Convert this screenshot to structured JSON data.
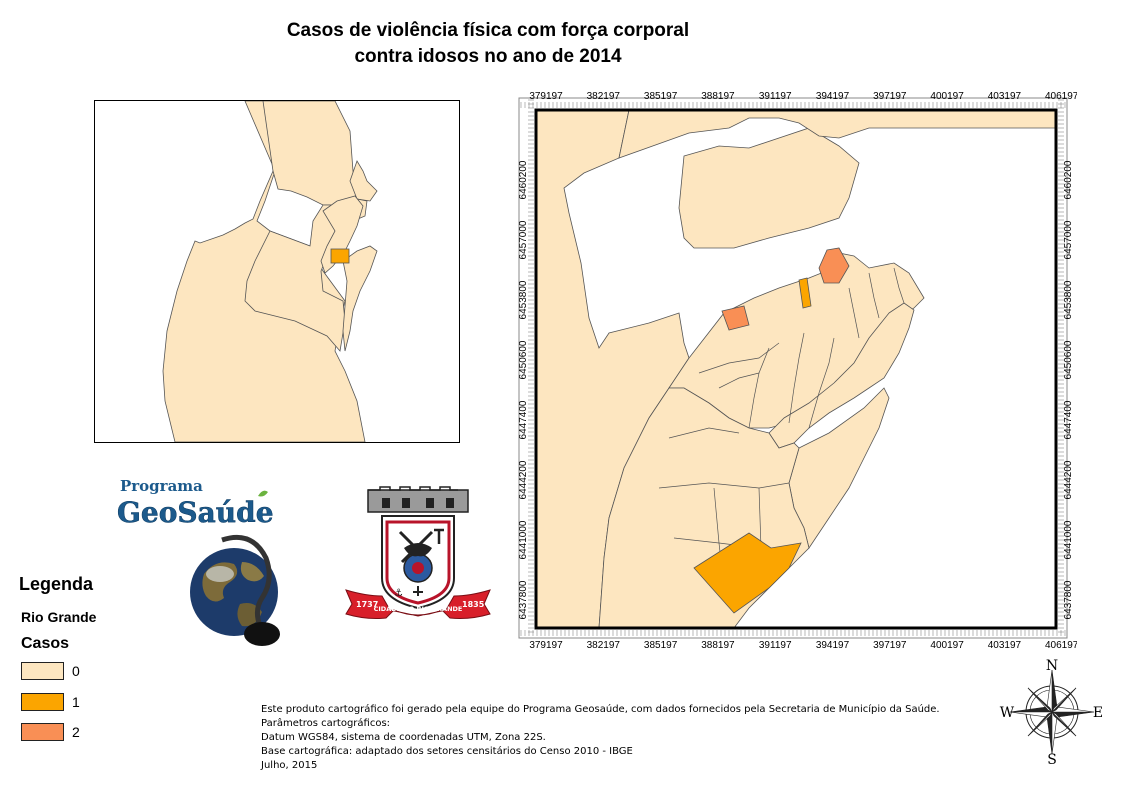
{
  "title": {
    "line1": "Casos de violência física com força corporal",
    "line2": "contra idosos no ano de 2014"
  },
  "map_frame": {
    "x_ticks": [
      "379197",
      "382197",
      "385197",
      "388197",
      "391197",
      "394197",
      "397197",
      "400197",
      "403197",
      "406197"
    ],
    "y_ticks": [
      "6460200",
      "6457000",
      "6453800",
      "6450600",
      "6447400",
      "6444200",
      "6441000",
      "6437800"
    ]
  },
  "legend": {
    "title": "Legenda",
    "layer": "Rio Grande",
    "field": "Casos",
    "classes": [
      {
        "label": "0",
        "color": "#fde6c0"
      },
      {
        "label": "1",
        "color": "#fba500"
      },
      {
        "label": "2",
        "color": "#f98f55"
      }
    ]
  },
  "logos": {
    "program_line1": "Programa",
    "program_line2": "GeoSaúde",
    "crest_year_left": "1737",
    "crest_banner": "CIDADE DO RIO GRANDE",
    "crest_year_right": "1835"
  },
  "notes": [
    "Este produto cartográfico foi gerado pela equipe do Programa Geosaúde, com dados fornecidos pela Secretaria de Município da Saúde.",
    "Parâmetros cartográficos:",
    "Datum WGS84, sistema de coordenadas UTM, Zona 22S.",
    "Base cartográfica: adaptado dos setores censitários do Censo 2010 - IBGE",
    "Julho, 2015"
  ],
  "compass": {
    "n": "N",
    "s": "S",
    "e": "E",
    "w": "W"
  },
  "colors": {
    "land": "#fde6c0",
    "class_1": "#fba500",
    "class_2": "#f98f55",
    "outline": "#555555"
  }
}
